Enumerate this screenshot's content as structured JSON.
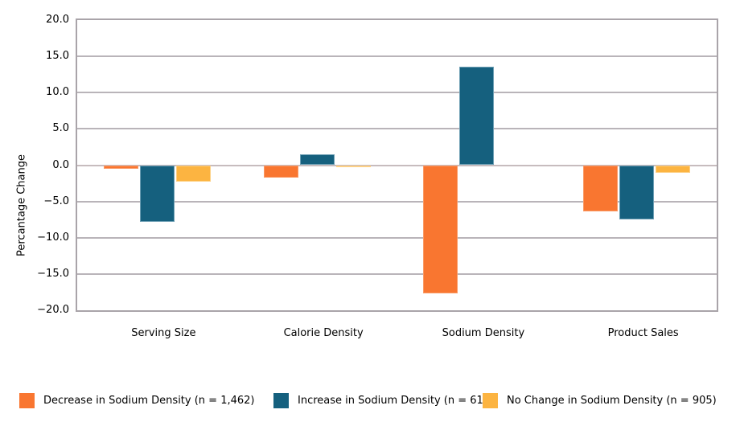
{
  "chart_data": {
    "type": "bar",
    "title": "",
    "xlabel": "",
    "ylabel": "Percantage Change",
    "ylim": [
      -20,
      20
    ],
    "ytick_step": 5,
    "yticks": [
      "20.0",
      "15.0",
      "10.0",
      "5.0",
      "0.0",
      "−5.0",
      "−10.0",
      "−15.0",
      "−20.0"
    ],
    "grid": "horizontal",
    "legend_position": "bottom",
    "categories": [
      "Serving Size",
      "Calorie Density",
      "Sodium Density",
      "Product Sales"
    ],
    "series": [
      {
        "name": "Decrease in Sodium Density (n = 1,462)",
        "color": "#f97630",
        "edge_color": "#fa9a66",
        "values": [
          -0.5,
          -1.7,
          -17.7,
          -6.4
        ]
      },
      {
        "name": "Increase in Sodium Density (n = 612)",
        "color": "#15607e",
        "edge_color": "#6d9fb4",
        "values": [
          -7.8,
          1.5,
          13.6,
          -7.5
        ]
      },
      {
        "name": "No Change in Sodium Density (n = 905)",
        "color": "#fcb441",
        "edge_color": "#fdd084",
        "values": [
          -2.3,
          -0.3,
          0.0,
          -1.1
        ]
      }
    ],
    "colors": {
      "plot_border": "#a9a4a9",
      "gridline": "#b9b4b9",
      "zero_line": "#c7bcbe",
      "background": "#ffffff",
      "text": "#000000"
    }
  }
}
